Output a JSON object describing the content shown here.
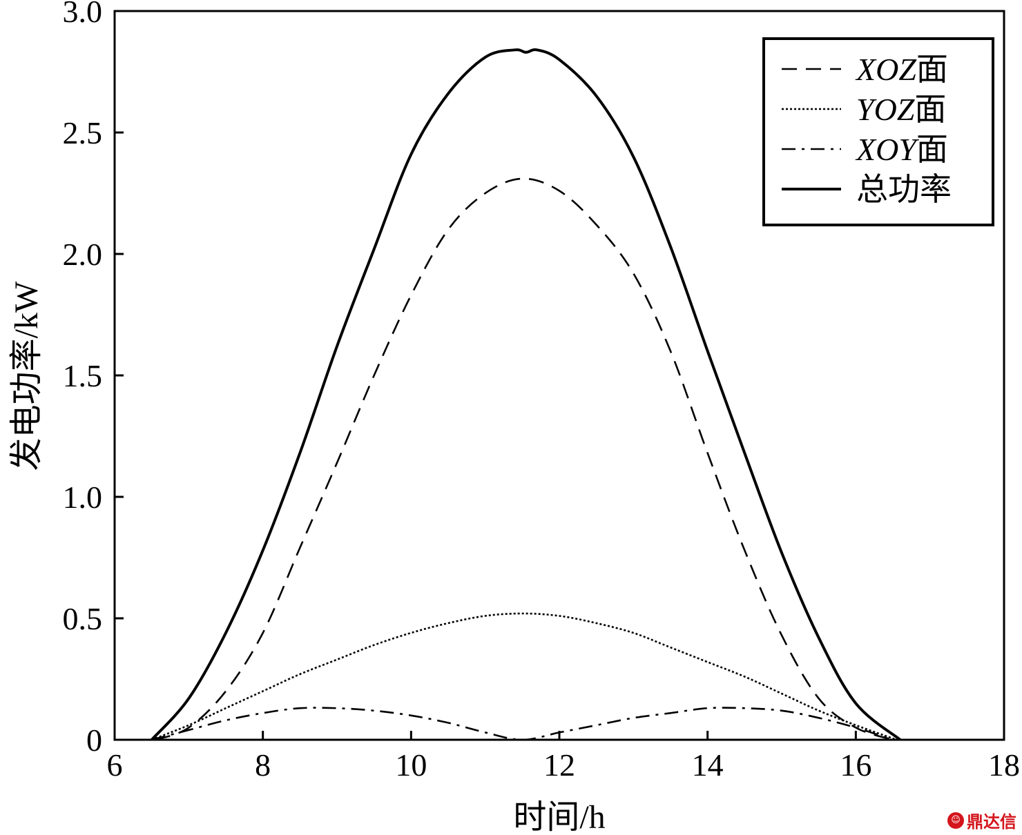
{
  "chart_data": {
    "type": "line",
    "xlabel": "时间/h",
    "ylabel": "发电功率/kW",
    "xlim": [
      6,
      18
    ],
    "ylim": [
      0,
      3.0
    ],
    "x_ticks": [
      "6",
      "8",
      "10",
      "12",
      "14",
      "16",
      "18"
    ],
    "y_ticks": [
      "0",
      "0.5",
      "1.0",
      "1.5",
      "2.0",
      "2.5",
      "3.0"
    ],
    "legend_position": "top-right",
    "grid": false,
    "series": [
      {
        "name": "XOZ面",
        "name_italic": "XOZ",
        "name_suffix": "面",
        "style": "dashed",
        "x": [
          6.55,
          7.0,
          7.5,
          8.0,
          8.5,
          9.0,
          9.5,
          10.0,
          10.5,
          11.0,
          11.5,
          12.0,
          12.5,
          13.0,
          13.5,
          14.0,
          14.5,
          15.0,
          15.5,
          16.0,
          16.5
        ],
        "y": [
          0.0,
          0.05,
          0.2,
          0.44,
          0.79,
          1.14,
          1.5,
          1.83,
          2.1,
          2.25,
          2.31,
          2.26,
          2.12,
          1.92,
          1.6,
          1.18,
          0.78,
          0.43,
          0.17,
          0.05,
          0.0
        ]
      },
      {
        "name": "YOZ面",
        "name_italic": "YOZ",
        "name_suffix": "面",
        "style": "dotted",
        "x": [
          6.5,
          7.0,
          7.5,
          8.0,
          8.5,
          9.0,
          9.5,
          10.0,
          10.5,
          11.0,
          11.5,
          12.0,
          12.5,
          13.0,
          13.5,
          14.0,
          14.5,
          15.0,
          15.5,
          16.0,
          16.55
        ],
        "y": [
          0.0,
          0.06,
          0.13,
          0.2,
          0.27,
          0.33,
          0.39,
          0.44,
          0.48,
          0.51,
          0.52,
          0.51,
          0.48,
          0.44,
          0.38,
          0.32,
          0.26,
          0.19,
          0.12,
          0.06,
          0.0
        ]
      },
      {
        "name": "XOY面",
        "name_italic": "XOY",
        "name_suffix": "面",
        "style": "dashdot",
        "x": [
          6.5,
          7.0,
          7.5,
          8.0,
          8.5,
          9.0,
          9.5,
          10.0,
          10.5,
          11.0,
          11.5,
          12.0,
          12.5,
          13.0,
          13.5,
          14.0,
          14.5,
          15.0,
          15.5,
          16.0,
          16.5
        ],
        "y": [
          0.0,
          0.04,
          0.08,
          0.11,
          0.13,
          0.13,
          0.12,
          0.1,
          0.07,
          0.03,
          0.0,
          0.03,
          0.06,
          0.09,
          0.11,
          0.13,
          0.13,
          0.12,
          0.09,
          0.05,
          0.0
        ]
      },
      {
        "name": "总功率",
        "name_italic": "",
        "name_suffix": "总功率",
        "style": "solid",
        "x": [
          6.5,
          7.0,
          7.5,
          8.0,
          8.5,
          9.0,
          9.5,
          10.0,
          10.5,
          11.0,
          11.4,
          11.55,
          11.7,
          12.0,
          12.5,
          13.0,
          13.5,
          14.0,
          14.5,
          15.0,
          15.5,
          16.0,
          16.6
        ],
        "y": [
          0.0,
          0.17,
          0.44,
          0.78,
          1.18,
          1.62,
          2.02,
          2.41,
          2.66,
          2.81,
          2.84,
          2.83,
          2.84,
          2.8,
          2.65,
          2.4,
          2.03,
          1.6,
          1.18,
          0.77,
          0.42,
          0.15,
          0.0
        ]
      }
    ]
  },
  "watermark": {
    "icon": "dingdaxin-logo-icon",
    "text": "鼎达信"
  }
}
